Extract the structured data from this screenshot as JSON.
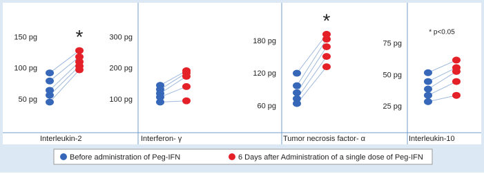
{
  "legend": [
    {
      "name": "Before administration of Peg-IFN",
      "color": "#3767b8"
    },
    {
      "name": "6 Days after Administration of a single dose of Peg-IFN",
      "color": "#e42128"
    }
  ],
  "chart_data": [
    {
      "type": "paired-dot",
      "xlabel": "Interleukin-2",
      "annotation": "*",
      "ylim": [
        0,
        205
      ],
      "yticks": [
        {
          "value": 50,
          "label": "50 pg"
        },
        {
          "value": 100,
          "label": "100 pg"
        },
        {
          "value": 150,
          "label": "150 pg"
        }
      ],
      "series": [
        {
          "values": [
            93,
            80,
            65,
            57,
            46
          ]
        },
        {
          "values": [
            129,
            119,
            111,
            104,
            98
          ]
        }
      ]
    },
    {
      "type": "paired-dot",
      "xlabel": "Interferon- γ",
      "ylim": [
        0,
        410
      ],
      "yticks": [
        {
          "value": 100,
          "label": "100 pg"
        },
        {
          "value": 200,
          "label": "200 pg"
        },
        {
          "value": 300,
          "label": "300 pg"
        }
      ],
      "series": [
        {
          "values": [
            146,
            133,
            120,
            108,
            92
          ]
        },
        {
          "values": [
            193,
            186,
            175,
            142,
            96
          ]
        }
      ]
    },
    {
      "type": "paired-dot",
      "xlabel": "Tumor necrosis factor- α",
      "annotation": "*",
      "ylim": [
        15,
        250
      ],
      "yticks": [
        {
          "value": 60,
          "label": "60 pg"
        },
        {
          "value": 120,
          "label": "120 pg"
        },
        {
          "value": 180,
          "label": "180 pg"
        }
      ],
      "series": [
        {
          "values": [
            121,
            98,
            85,
            74,
            65
          ]
        },
        {
          "values": [
            193,
            184,
            170,
            152,
            133
          ]
        }
      ]
    },
    {
      "type": "paired-dot",
      "xlabel": "Interleukin-10",
      "annotation": "* p<0.05",
      "ylim": [
        6,
        107
      ],
      "yticks": [
        {
          "value": 25,
          "label": "25 pg"
        },
        {
          "value": 50,
          "label": "50 pg"
        },
        {
          "value": 75,
          "label": "75 pg"
        }
      ],
      "series": [
        {
          "values": [
            52,
            45,
            39,
            34,
            29
          ]
        },
        {
          "values": [
            62,
            56,
            53,
            45,
            34
          ]
        }
      ]
    }
  ]
}
